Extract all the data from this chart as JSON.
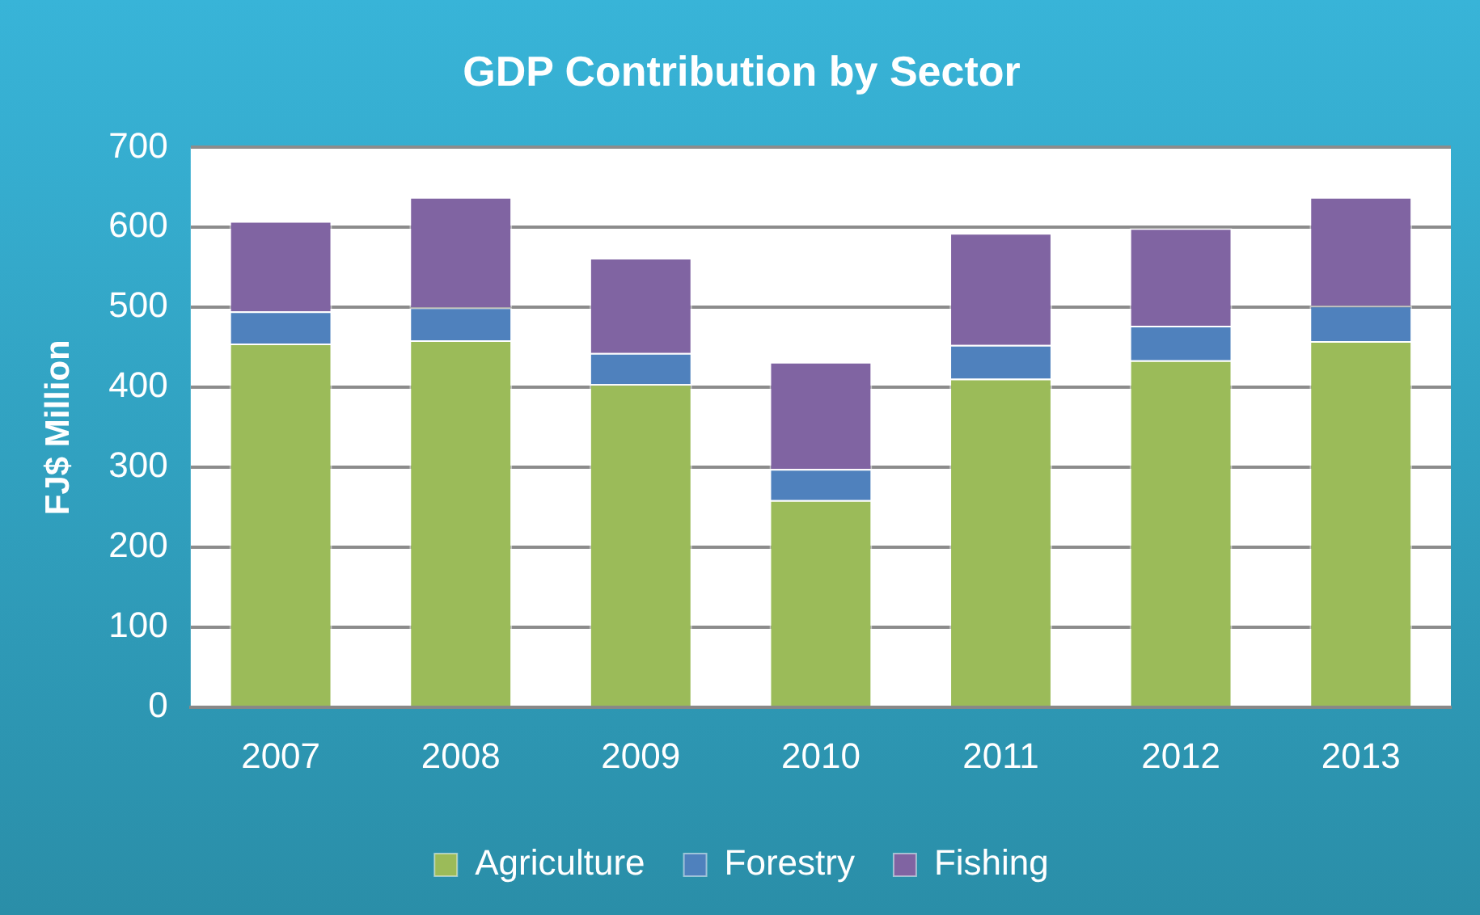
{
  "chart_data": {
    "type": "bar",
    "title": "GDP Contribution by Sector",
    "ylabel": "FJ$ Million",
    "categories": [
      "2007",
      "2008",
      "2009",
      "2010",
      "2011",
      "2012",
      "2013"
    ],
    "stacked": true,
    "series": [
      {
        "name": "Agriculture",
        "color": "#9bbb59",
        "values": [
          455,
          459,
          404,
          259,
          411,
          434,
          458
        ]
      },
      {
        "name": "Forestry",
        "color": "#4f81bd",
        "values": [
          40,
          41,
          39,
          39,
          42,
          43,
          44
        ]
      },
      {
        "name": "Fishing",
        "color": "#8064a2",
        "values": [
          113,
          138,
          119,
          134,
          140,
          122,
          136
        ]
      }
    ],
    "ylim": [
      0,
      700
    ],
    "yticks": [
      0,
      100,
      200,
      300,
      400,
      500,
      600,
      700
    ],
    "grid": "y",
    "legend": "bottom"
  }
}
